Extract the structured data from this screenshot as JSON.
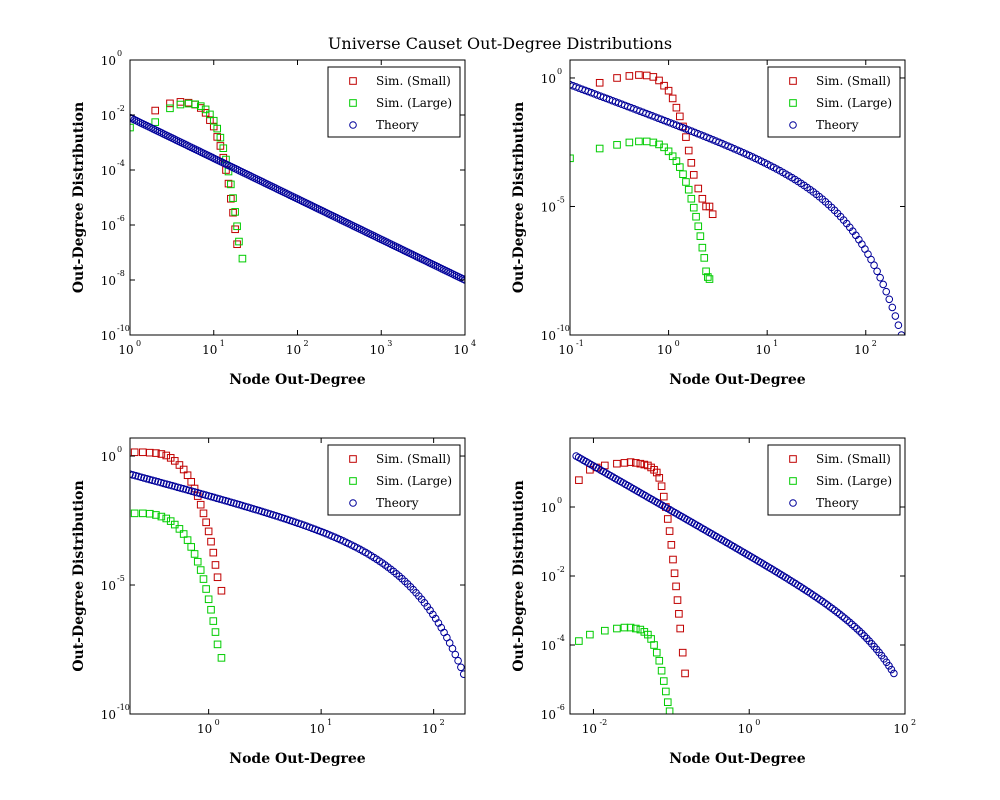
{
  "figure": {
    "title": "Universe Causet Out-Degree Distributions",
    "colors": {
      "small": "#c00000",
      "large": "#00cc00",
      "theory": "#000099"
    }
  },
  "chart_data": [
    {
      "type": "scatter",
      "x_scale": "log",
      "y_scale": "log",
      "xlabel": "Node Out-Degree",
      "ylabel": "Out-Degree Distribution",
      "xlim": [
        1,
        10000
      ],
      "ylim": [
        1e-10,
        1
      ],
      "x_ticks": [
        {
          "b": "10",
          "e": "0",
          "v": 1
        },
        {
          "b": "10",
          "e": "1",
          "v": 10
        },
        {
          "b": "10",
          "e": "2",
          "v": 100
        },
        {
          "b": "10",
          "e": "3",
          "v": 1000
        },
        {
          "b": "10",
          "e": "4",
          "v": 10000
        }
      ],
      "y_ticks": [
        {
          "b": "10",
          "e": "0",
          "v": 1
        },
        {
          "b": "10",
          "e": "-2",
          "v": 0.01
        },
        {
          "b": "10",
          "e": "-4",
          "v": 0.0001
        },
        {
          "b": "10",
          "e": "-6",
          "v": 1e-06
        },
        {
          "b": "10",
          "e": "-8",
          "v": 1e-08
        },
        {
          "b": "10",
          "e": "-10",
          "v": 1e-10
        }
      ],
      "legend": {
        "position": "top-right",
        "entries": [
          "Sim. (Small)",
          "Sim. (Large)",
          "Theory"
        ]
      },
      "series": [
        {
          "name": "Sim. (Small)",
          "marker": "square",
          "color": "#c00000",
          "points": [
            [
              2,
              0.0145
            ],
            [
              3,
              0.0265
            ],
            [
              4,
              0.03
            ],
            [
              5,
              0.028
            ],
            [
              6,
              0.024
            ],
            [
              7,
              0.018
            ],
            [
              8,
              0.012
            ],
            [
              9,
              0.0065
            ],
            [
              10,
              0.0038
            ],
            [
              11,
              0.0016
            ],
            [
              12,
              0.00075
            ],
            [
              13,
              0.00028
            ],
            [
              14,
              0.0001
            ],
            [
              15,
              3.2e-05
            ],
            [
              16,
              9e-06
            ],
            [
              17,
              2.8e-06
            ],
            [
              18,
              7e-07
            ],
            [
              19,
              2e-07
            ]
          ]
        },
        {
          "name": "Sim. (Large)",
          "marker": "square",
          "color": "#00cc00",
          "points": [
            [
              1,
              0.0035
            ],
            [
              2,
              0.0055
            ],
            [
              3,
              0.0175
            ],
            [
              4,
              0.024
            ],
            [
              5,
              0.026
            ],
            [
              6,
              0.0245
            ],
            [
              7,
              0.021
            ],
            [
              8,
              0.016
            ],
            [
              9,
              0.0105
            ],
            [
              10,
              0.0062
            ],
            [
              11,
              0.0032
            ],
            [
              12,
              0.0015
            ],
            [
              13,
              0.00062
            ],
            [
              14,
              0.00024
            ],
            [
              15,
              8.8e-05
            ],
            [
              16,
              3e-05
            ],
            [
              17,
              9.5e-06
            ],
            [
              18,
              3e-06
            ],
            [
              19,
              9e-07
            ],
            [
              20,
              2.5e-07
            ],
            [
              22,
              6e-08
            ]
          ]
        },
        {
          "name": "Theory",
          "marker": "circle",
          "color": "#000099",
          "curve": {
            "kind": "power",
            "x_from": 1,
            "x_to": 10000,
            "y_from": 0.008,
            "y_to": 1e-08,
            "n": 160
          }
        }
      ]
    },
    {
      "type": "scatter",
      "x_scale": "log",
      "y_scale": "log",
      "xlabel": "Node Out-Degree",
      "ylabel": "Out-Degree Distribution",
      "xlim": [
        0.1,
        250
      ],
      "ylim": [
        1e-10,
        5
      ],
      "x_ticks": [
        {
          "b": "10",
          "e": "-1",
          "v": 0.1
        },
        {
          "b": "10",
          "e": "0",
          "v": 1
        },
        {
          "b": "10",
          "e": "1",
          "v": 10
        },
        {
          "b": "10",
          "e": "2",
          "v": 100
        }
      ],
      "y_ticks": [
        {
          "b": "10",
          "e": "0",
          "v": 1
        },
        {
          "b": "10",
          "e": "-5",
          "v": 1e-05
        },
        {
          "b": "10",
          "e": "-10",
          "v": 1e-10
        }
      ],
      "legend": {
        "position": "top-right",
        "entries": [
          "Sim. (Small)",
          "Sim. (Large)",
          "Theory"
        ]
      },
      "series": [
        {
          "name": "Sim. (Small)",
          "marker": "square",
          "color": "#c00000",
          "points": [
            [
              0.2,
              0.65
            ],
            [
              0.3,
              1.0
            ],
            [
              0.4,
              1.2
            ],
            [
              0.5,
              1.3
            ],
            [
              0.6,
              1.25
            ],
            [
              0.7,
              1.1
            ],
            [
              0.8,
              0.8
            ],
            [
              0.9,
              0.5
            ],
            [
              1.0,
              0.32
            ],
            [
              1.1,
              0.16
            ],
            [
              1.2,
              0.07
            ],
            [
              1.3,
              0.032
            ],
            [
              1.4,
              0.013
            ],
            [
              1.5,
              0.005
            ],
            [
              1.6,
              0.0015
            ],
            [
              1.7,
              0.0005
            ],
            [
              1.8,
              0.00017
            ],
            [
              2.0,
              5e-05
            ],
            [
              2.2,
              2e-05
            ],
            [
              2.4,
              1e-05
            ],
            [
              2.6,
              1e-05
            ],
            [
              2.8,
              5e-06
            ]
          ]
        },
        {
          "name": "Sim. (Large)",
          "marker": "square",
          "color": "#00cc00",
          "points": [
            [
              0.1,
              0.00075
            ],
            [
              0.2,
              0.0018
            ],
            [
              0.3,
              0.0025
            ],
            [
              0.4,
              0.0031
            ],
            [
              0.5,
              0.0034
            ],
            [
              0.6,
              0.0034
            ],
            [
              0.7,
              0.0031
            ],
            [
              0.8,
              0.0026
            ],
            [
              0.9,
              0.002
            ],
            [
              1.0,
              0.0014
            ],
            [
              1.1,
              0.0009
            ],
            [
              1.2,
              0.00058
            ],
            [
              1.3,
              0.00034
            ],
            [
              1.4,
              0.00018
            ],
            [
              1.5,
              9e-05
            ],
            [
              1.6,
              4.5e-05
            ],
            [
              1.7,
              2e-05
            ],
            [
              1.8,
              9e-06
            ],
            [
              1.9,
              4e-06
            ],
            [
              2.0,
              1.7e-06
            ],
            [
              2.1,
              7e-07
            ],
            [
              2.2,
              2.5e-07
            ],
            [
              2.3,
              1e-07
            ],
            [
              2.4,
              3e-08
            ],
            [
              2.5,
              1.8e-08
            ],
            [
              2.6,
              1.5e-08
            ]
          ]
        },
        {
          "name": "Theory",
          "marker": "circle",
          "color": "#000099",
          "curve": {
            "kind": "cutoff",
            "x_from": 0.1,
            "x_to": 230,
            "y_at_start": 0.55,
            "y_at_one": 0.02,
            "y_at_end": 1e-10,
            "n": 110
          }
        }
      ]
    },
    {
      "type": "scatter",
      "x_scale": "log",
      "y_scale": "log",
      "xlabel": "Node Out-Degree",
      "ylabel": "Out-Degree Distribution",
      "xlim": [
        0.2,
        190
      ],
      "ylim": [
        1e-10,
        5
      ],
      "x_ticks": [
        {
          "b": "10",
          "e": "0",
          "v": 1
        },
        {
          "b": "10",
          "e": "1",
          "v": 10
        },
        {
          "b": "10",
          "e": "2",
          "v": 100
        }
      ],
      "y_ticks": [
        {
          "b": "10",
          "e": "0",
          "v": 1
        },
        {
          "b": "10",
          "e": "-5",
          "v": 1e-05
        },
        {
          "b": "10",
          "e": "-10",
          "v": 1e-10
        }
      ],
      "legend": {
        "position": "top-right",
        "entries": [
          "Sim. (Small)",
          "Sim. (Large)",
          "Theory"
        ]
      },
      "series": [
        {
          "name": "Sim. (Small)",
          "marker": "square",
          "color": "#c00000",
          "points": [
            [
              0.22,
              1.4
            ],
            [
              0.26,
              1.4
            ],
            [
              0.3,
              1.35
            ],
            [
              0.34,
              1.3
            ],
            [
              0.38,
              1.2
            ],
            [
              0.42,
              1.05
            ],
            [
              0.46,
              0.85
            ],
            [
              0.5,
              0.65
            ],
            [
              0.55,
              0.45
            ],
            [
              0.6,
              0.3
            ],
            [
              0.65,
              0.18
            ],
            [
              0.7,
              0.1
            ],
            [
              0.75,
              0.055
            ],
            [
              0.8,
              0.028
            ],
            [
              0.85,
              0.013
            ],
            [
              0.9,
              0.006
            ],
            [
              0.95,
              0.0027
            ],
            [
              1.0,
              0.0012
            ],
            [
              1.05,
              0.00048
            ],
            [
              1.1,
              0.00018
            ],
            [
              1.15,
              6e-05
            ],
            [
              1.2,
              2e-05
            ],
            [
              1.3,
              6e-06
            ]
          ]
        },
        {
          "name": "Sim. (Large)",
          "marker": "square",
          "color": "#00cc00",
          "points": [
            [
              0.22,
              0.006
            ],
            [
              0.26,
              0.006
            ],
            [
              0.3,
              0.0058
            ],
            [
              0.34,
              0.0052
            ],
            [
              0.38,
              0.0045
            ],
            [
              0.42,
              0.0038
            ],
            [
              0.46,
              0.003
            ],
            [
              0.5,
              0.0022
            ],
            [
              0.55,
              0.0015
            ],
            [
              0.6,
              0.00095
            ],
            [
              0.65,
              0.00055
            ],
            [
              0.7,
              0.0003
            ],
            [
              0.75,
              0.00016
            ],
            [
              0.8,
              8e-05
            ],
            [
              0.85,
              3.8e-05
            ],
            [
              0.9,
              1.7e-05
            ],
            [
              0.95,
              7e-06
            ],
            [
              1.0,
              2.8e-06
            ],
            [
              1.05,
              1.1e-06
            ],
            [
              1.1,
              4e-07
            ],
            [
              1.15,
              1.5e-07
            ],
            [
              1.2,
              5e-08
            ],
            [
              1.3,
              1.5e-08
            ]
          ]
        },
        {
          "name": "Theory",
          "marker": "circle",
          "color": "#000099",
          "curve": {
            "kind": "cutoff",
            "x_from": 0.2,
            "x_to": 185,
            "y_at_start": 0.2,
            "y_at_one": 0.03,
            "y_at_end": 3.5e-09,
            "n": 120
          }
        }
      ]
    },
    {
      "type": "scatter",
      "x_scale": "log",
      "y_scale": "log",
      "xlabel": "Node Out-Degree",
      "ylabel": "Out-Degree Distribution",
      "xlim": [
        0.005,
        100
      ],
      "ylim": [
        1e-06,
        100
      ],
      "x_ticks": [
        {
          "b": "10",
          "e": "-2",
          "v": 0.01
        },
        {
          "b": "10",
          "e": "0",
          "v": 1
        },
        {
          "b": "10",
          "e": "2",
          "v": 100
        }
      ],
      "y_ticks": [
        {
          "b": "10",
          "e": "0",
          "v": 1
        },
        {
          "b": "10",
          "e": "-2",
          "v": 0.01
        },
        {
          "b": "10",
          "e": "-4",
          "v": 0.0001
        },
        {
          "b": "10",
          "e": "-6",
          "v": 1e-06
        }
      ],
      "legend": {
        "position": "top-right",
        "entries": [
          "Sim. (Small)",
          "Sim. (Large)",
          "Theory"
        ]
      },
      "series": [
        {
          "name": "Sim. (Small)",
          "marker": "square",
          "color": "#c00000",
          "points": [
            [
              0.0065,
              6
            ],
            [
              0.009,
              12
            ],
            [
              0.011,
              14
            ],
            [
              0.014,
              16
            ],
            [
              0.02,
              18
            ],
            [
              0.025,
              19
            ],
            [
              0.03,
              20
            ],
            [
              0.035,
              19
            ],
            [
              0.04,
              18
            ],
            [
              0.045,
              17
            ],
            [
              0.05,
              16
            ],
            [
              0.055,
              14
            ],
            [
              0.06,
              12
            ],
            [
              0.065,
              10
            ],
            [
              0.07,
              7
            ],
            [
              0.075,
              4
            ],
            [
              0.08,
              2
            ],
            [
              0.085,
              1
            ],
            [
              0.09,
              0.45
            ],
            [
              0.095,
              0.2
            ],
            [
              0.1,
              0.08
            ],
            [
              0.105,
              0.03
            ],
            [
              0.11,
              0.012
            ],
            [
              0.115,
              0.005
            ],
            [
              0.12,
              0.002
            ],
            [
              0.125,
              0.0008
            ],
            [
              0.13,
              0.0003
            ],
            [
              0.14,
              6e-05
            ],
            [
              0.15,
              1.5e-05
            ]
          ]
        },
        {
          "name": "Sim. (Large)",
          "marker": "square",
          "color": "#00cc00",
          "points": [
            [
              0.0065,
              0.00013
            ],
            [
              0.009,
              0.0002
            ],
            [
              0.014,
              0.00026
            ],
            [
              0.02,
              0.0003
            ],
            [
              0.025,
              0.00032
            ],
            [
              0.03,
              0.00032
            ],
            [
              0.035,
              0.0003
            ],
            [
              0.04,
              0.00028
            ],
            [
              0.045,
              0.00024
            ],
            [
              0.05,
              0.0002
            ],
            [
              0.055,
              0.00015
            ],
            [
              0.06,
              0.0001
            ],
            [
              0.065,
              6e-05
            ],
            [
              0.07,
              3.5e-05
            ],
            [
              0.075,
              1.8e-05
            ],
            [
              0.08,
              9e-06
            ],
            [
              0.085,
              4.5e-06
            ],
            [
              0.09,
              2.2e-06
            ],
            [
              0.095,
              1.2e-06
            ]
          ]
        },
        {
          "name": "Theory",
          "marker": "circle",
          "color": "#000099",
          "curve": {
            "kind": "cutoff",
            "x_from": 0.006,
            "x_to": 72,
            "y_at_start": 30,
            "y_at_one": 0.04,
            "y_at_end": 1.5e-05,
            "n": 130
          }
        }
      ]
    }
  ]
}
